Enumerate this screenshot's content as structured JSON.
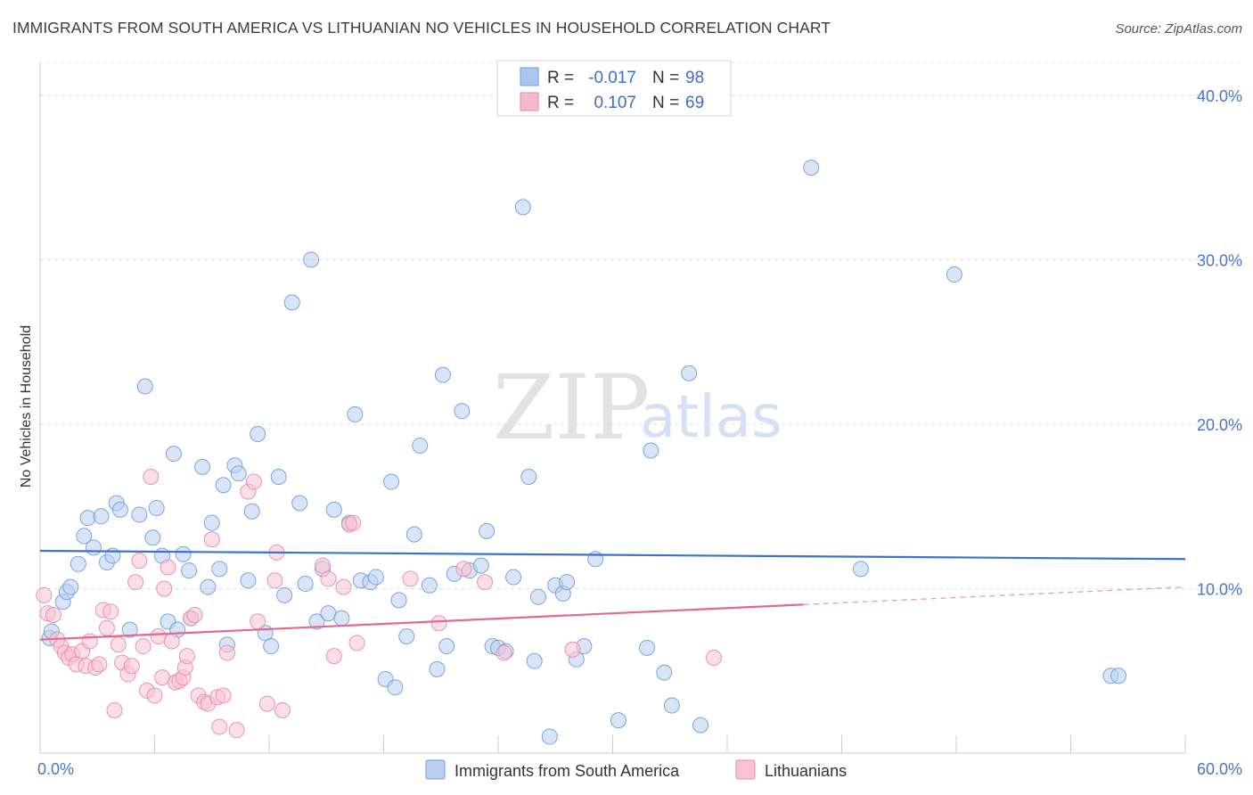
{
  "title": "IMMIGRANTS FROM SOUTH AMERICA VS LITHUANIAN NO VEHICLES IN HOUSEHOLD CORRELATION CHART",
  "source": "Source: ZipAtlas.com",
  "watermark": {
    "zip": "ZIP",
    "atlas": "atlas"
  },
  "legend": {
    "rows": [
      {
        "r_label": "R = ",
        "r_value": "-0.017",
        "n_label": "N = ",
        "n_value": "98",
        "color": "#a9c6ee"
      },
      {
        "r_label": "R = ",
        "r_value": "0.107",
        "n_label": "N = ",
        "n_value": "69",
        "color": "#f5b8cc"
      }
    ]
  },
  "chart_data": {
    "type": "scatter",
    "ylabel": "No Vehicles in Household",
    "xlabel": "",
    "xlim": [
      0,
      60
    ],
    "ylim": [
      0,
      42
    ],
    "x_tick_labels": [
      "0.0%",
      "60.0%"
    ],
    "y_ticks": [
      10,
      20,
      30,
      40
    ],
    "y_tick_labels": [
      "10.0%",
      "20.0%",
      "30.0%",
      "40.0%"
    ],
    "grid": "horizontal dashed",
    "legend_position": "top-center",
    "series": [
      {
        "name": "Immigrants from South America",
        "color": "#6e9be0",
        "fill": "#b9d0f1",
        "trend": {
          "x0": 0,
          "y0": 12.3,
          "x1": 60,
          "y1": 11.8
        },
        "points": [
          [
            0.5,
            7.0
          ],
          [
            0.6,
            7.4
          ],
          [
            1.2,
            9.2
          ],
          [
            1.4,
            9.8
          ],
          [
            1.6,
            10.1
          ],
          [
            2.0,
            11.5
          ],
          [
            2.3,
            13.2
          ],
          [
            2.5,
            14.3
          ],
          [
            2.8,
            12.5
          ],
          [
            3.2,
            14.4
          ],
          [
            3.5,
            11.6
          ],
          [
            3.8,
            12.0
          ],
          [
            4.0,
            15.2
          ],
          [
            4.2,
            14.8
          ],
          [
            4.7,
            7.5
          ],
          [
            5.2,
            14.5
          ],
          [
            5.5,
            22.3
          ],
          [
            5.9,
            13.1
          ],
          [
            6.1,
            14.9
          ],
          [
            6.4,
            12.0
          ],
          [
            6.7,
            8.0
          ],
          [
            7.0,
            18.2
          ],
          [
            7.2,
            7.5
          ],
          [
            7.5,
            12.1
          ],
          [
            7.8,
            11.1
          ],
          [
            7.9,
            8.2
          ],
          [
            8.5,
            17.4
          ],
          [
            8.8,
            10.1
          ],
          [
            9.0,
            14.0
          ],
          [
            9.4,
            11.2
          ],
          [
            9.6,
            16.3
          ],
          [
            9.8,
            6.6
          ],
          [
            10.2,
            17.5
          ],
          [
            10.4,
            17.0
          ],
          [
            10.9,
            10.5
          ],
          [
            11.1,
            14.7
          ],
          [
            11.4,
            19.4
          ],
          [
            11.8,
            7.3
          ],
          [
            12.1,
            6.5
          ],
          [
            12.5,
            16.8
          ],
          [
            12.8,
            9.6
          ],
          [
            13.2,
            27.4
          ],
          [
            13.6,
            15.2
          ],
          [
            13.9,
            10.3
          ],
          [
            14.2,
            30.0
          ],
          [
            14.5,
            8.0
          ],
          [
            14.8,
            11.2
          ],
          [
            15.1,
            8.5
          ],
          [
            15.4,
            14.8
          ],
          [
            15.8,
            8.2
          ],
          [
            16.2,
            14.0
          ],
          [
            16.5,
            20.6
          ],
          [
            16.8,
            10.5
          ],
          [
            17.3,
            10.4
          ],
          [
            17.6,
            10.7
          ],
          [
            18.1,
            4.5
          ],
          [
            18.4,
            16.5
          ],
          [
            18.6,
            4.0
          ],
          [
            18.8,
            9.3
          ],
          [
            19.2,
            7.1
          ],
          [
            19.6,
            13.3
          ],
          [
            19.9,
            18.7
          ],
          [
            20.4,
            10.2
          ],
          [
            20.8,
            5.1
          ],
          [
            21.1,
            23.0
          ],
          [
            21.3,
            6.5
          ],
          [
            21.7,
            10.9
          ],
          [
            22.1,
            20.8
          ],
          [
            22.5,
            11.1
          ],
          [
            23.1,
            11.4
          ],
          [
            23.4,
            13.5
          ],
          [
            23.7,
            6.5
          ],
          [
            24.0,
            6.4
          ],
          [
            24.4,
            6.2
          ],
          [
            24.8,
            10.7
          ],
          [
            25.3,
            33.2
          ],
          [
            25.6,
            16.8
          ],
          [
            25.9,
            5.6
          ],
          [
            26.1,
            9.5
          ],
          [
            26.7,
            1.0
          ],
          [
            27.0,
            10.2
          ],
          [
            27.4,
            9.7
          ],
          [
            27.6,
            10.4
          ],
          [
            28.1,
            5.7
          ],
          [
            28.5,
            6.5
          ],
          [
            29.1,
            11.8
          ],
          [
            30.3,
            2.0
          ],
          [
            32.0,
            18.4
          ],
          [
            31.8,
            6.4
          ],
          [
            32.7,
            4.9
          ],
          [
            33.1,
            2.9
          ],
          [
            34.0,
            23.1
          ],
          [
            34.6,
            1.7
          ],
          [
            40.4,
            35.6
          ],
          [
            43.0,
            11.2
          ],
          [
            47.9,
            29.1
          ],
          [
            56.1,
            4.7
          ],
          [
            56.5,
            4.7
          ]
        ]
      },
      {
        "name": "Lithuanians",
        "color": "#e889a8",
        "fill": "#f7c3d3",
        "trend": {
          "x0": 0,
          "y0": 6.9,
          "x1": 60,
          "y1": 10.1
        },
        "trend_solid_to_x": 40,
        "points": [
          [
            0.2,
            9.6
          ],
          [
            0.4,
            8.5
          ],
          [
            0.7,
            8.4
          ],
          [
            0.9,
            6.9
          ],
          [
            1.1,
            6.5
          ],
          [
            1.3,
            6.1
          ],
          [
            1.5,
            5.8
          ],
          [
            1.7,
            6.0
          ],
          [
            1.9,
            5.4
          ],
          [
            2.2,
            6.2
          ],
          [
            2.4,
            5.3
          ],
          [
            2.6,
            6.8
          ],
          [
            2.9,
            5.2
          ],
          [
            3.1,
            5.4
          ],
          [
            3.3,
            8.7
          ],
          [
            3.5,
            7.6
          ],
          [
            3.7,
            8.6
          ],
          [
            3.9,
            2.6
          ],
          [
            4.1,
            6.6
          ],
          [
            4.3,
            5.5
          ],
          [
            4.6,
            4.8
          ],
          [
            4.8,
            5.3
          ],
          [
            5.0,
            10.4
          ],
          [
            5.2,
            11.7
          ],
          [
            5.4,
            6.5
          ],
          [
            5.6,
            3.8
          ],
          [
            5.8,
            16.8
          ],
          [
            6.0,
            3.5
          ],
          [
            6.2,
            7.1
          ],
          [
            6.4,
            4.6
          ],
          [
            6.5,
            10.0
          ],
          [
            6.7,
            11.3
          ],
          [
            6.9,
            6.8
          ],
          [
            7.1,
            4.3
          ],
          [
            7.3,
            4.4
          ],
          [
            7.5,
            4.6
          ],
          [
            7.6,
            5.2
          ],
          [
            7.7,
            5.9
          ],
          [
            7.9,
            8.2
          ],
          [
            8.1,
            8.4
          ],
          [
            8.3,
            3.5
          ],
          [
            8.6,
            3.1
          ],
          [
            8.8,
            3.0
          ],
          [
            9.0,
            13.0
          ],
          [
            9.3,
            3.4
          ],
          [
            9.4,
            1.6
          ],
          [
            9.6,
            3.5
          ],
          [
            9.8,
            6.1
          ],
          [
            10.3,
            1.4
          ],
          [
            10.9,
            15.9
          ],
          [
            11.2,
            16.5
          ],
          [
            11.4,
            8.0
          ],
          [
            11.9,
            3.0
          ],
          [
            12.3,
            10.5
          ],
          [
            12.4,
            12.2
          ],
          [
            12.7,
            2.6
          ],
          [
            14.8,
            11.4
          ],
          [
            15.1,
            10.6
          ],
          [
            15.4,
            5.9
          ],
          [
            15.9,
            10.1
          ],
          [
            16.2,
            13.9
          ],
          [
            16.4,
            14.0
          ],
          [
            16.6,
            6.7
          ],
          [
            19.4,
            10.6
          ],
          [
            20.9,
            7.9
          ],
          [
            22.2,
            11.2
          ],
          [
            23.3,
            10.4
          ],
          [
            24.3,
            6.1
          ],
          [
            27.9,
            6.3
          ],
          [
            35.3,
            5.8
          ]
        ]
      }
    ]
  },
  "bottom_legend": {
    "items": [
      {
        "label": "Immigrants from South America",
        "color": "#b9d0f1",
        "border": "#6e9be0"
      },
      {
        "label": "Lithuanians",
        "color": "#f7c3d3",
        "border": "#e889a8"
      }
    ]
  }
}
